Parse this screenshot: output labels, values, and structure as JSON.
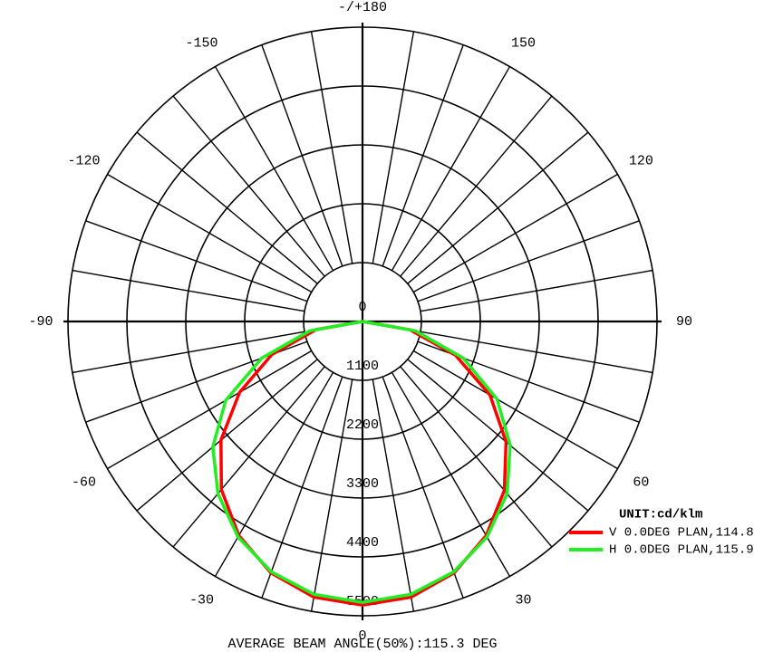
{
  "chart_data": {
    "type": "polar",
    "title": "AVERAGE BEAM ANGLE(50%):115.3 DEG",
    "unit": "UNIT:cd/klm",
    "x": [
      -90,
      -80,
      -70,
      -60,
      -50,
      -40,
      -30,
      -20,
      -10,
      0,
      10,
      20,
      30,
      40,
      50,
      60,
      70,
      80,
      90
    ],
    "series": [
      {
        "name": "V 0.0DEG PLAN,114.8",
        "color": "#ff0000",
        "values": [
          0,
          880,
          1800,
          2650,
          3450,
          4100,
          4620,
          5000,
          5230,
          5300,
          5230,
          5000,
          4620,
          4120,
          3500,
          2750,
          1850,
          900,
          0
        ]
      },
      {
        "name": "H 0.0DEG PLAN,115.9",
        "color": "#22ee22",
        "values": [
          0,
          1000,
          2000,
          2950,
          3650,
          4200,
          4650,
          4980,
          5180,
          5250,
          5180,
          4980,
          4650,
          4200,
          3600,
          2900,
          2000,
          1000,
          0
        ]
      }
    ],
    "ylim": [
      0,
      5500
    ],
    "yticks": [
      0,
      1100,
      2200,
      3300,
      4400,
      5500
    ],
    "xticks": [
      {
        "value": 180,
        "label": "-/+180"
      },
      {
        "value": -150,
        "label": "-150"
      },
      150,
      {
        "value": -120,
        "label": "-120"
      },
      120,
      {
        "value": -90,
        "label": "-90"
      },
      90,
      {
        "value": -60,
        "label": "-60"
      },
      60,
      {
        "value": -30,
        "label": "-30"
      },
      30,
      0
    ]
  }
}
